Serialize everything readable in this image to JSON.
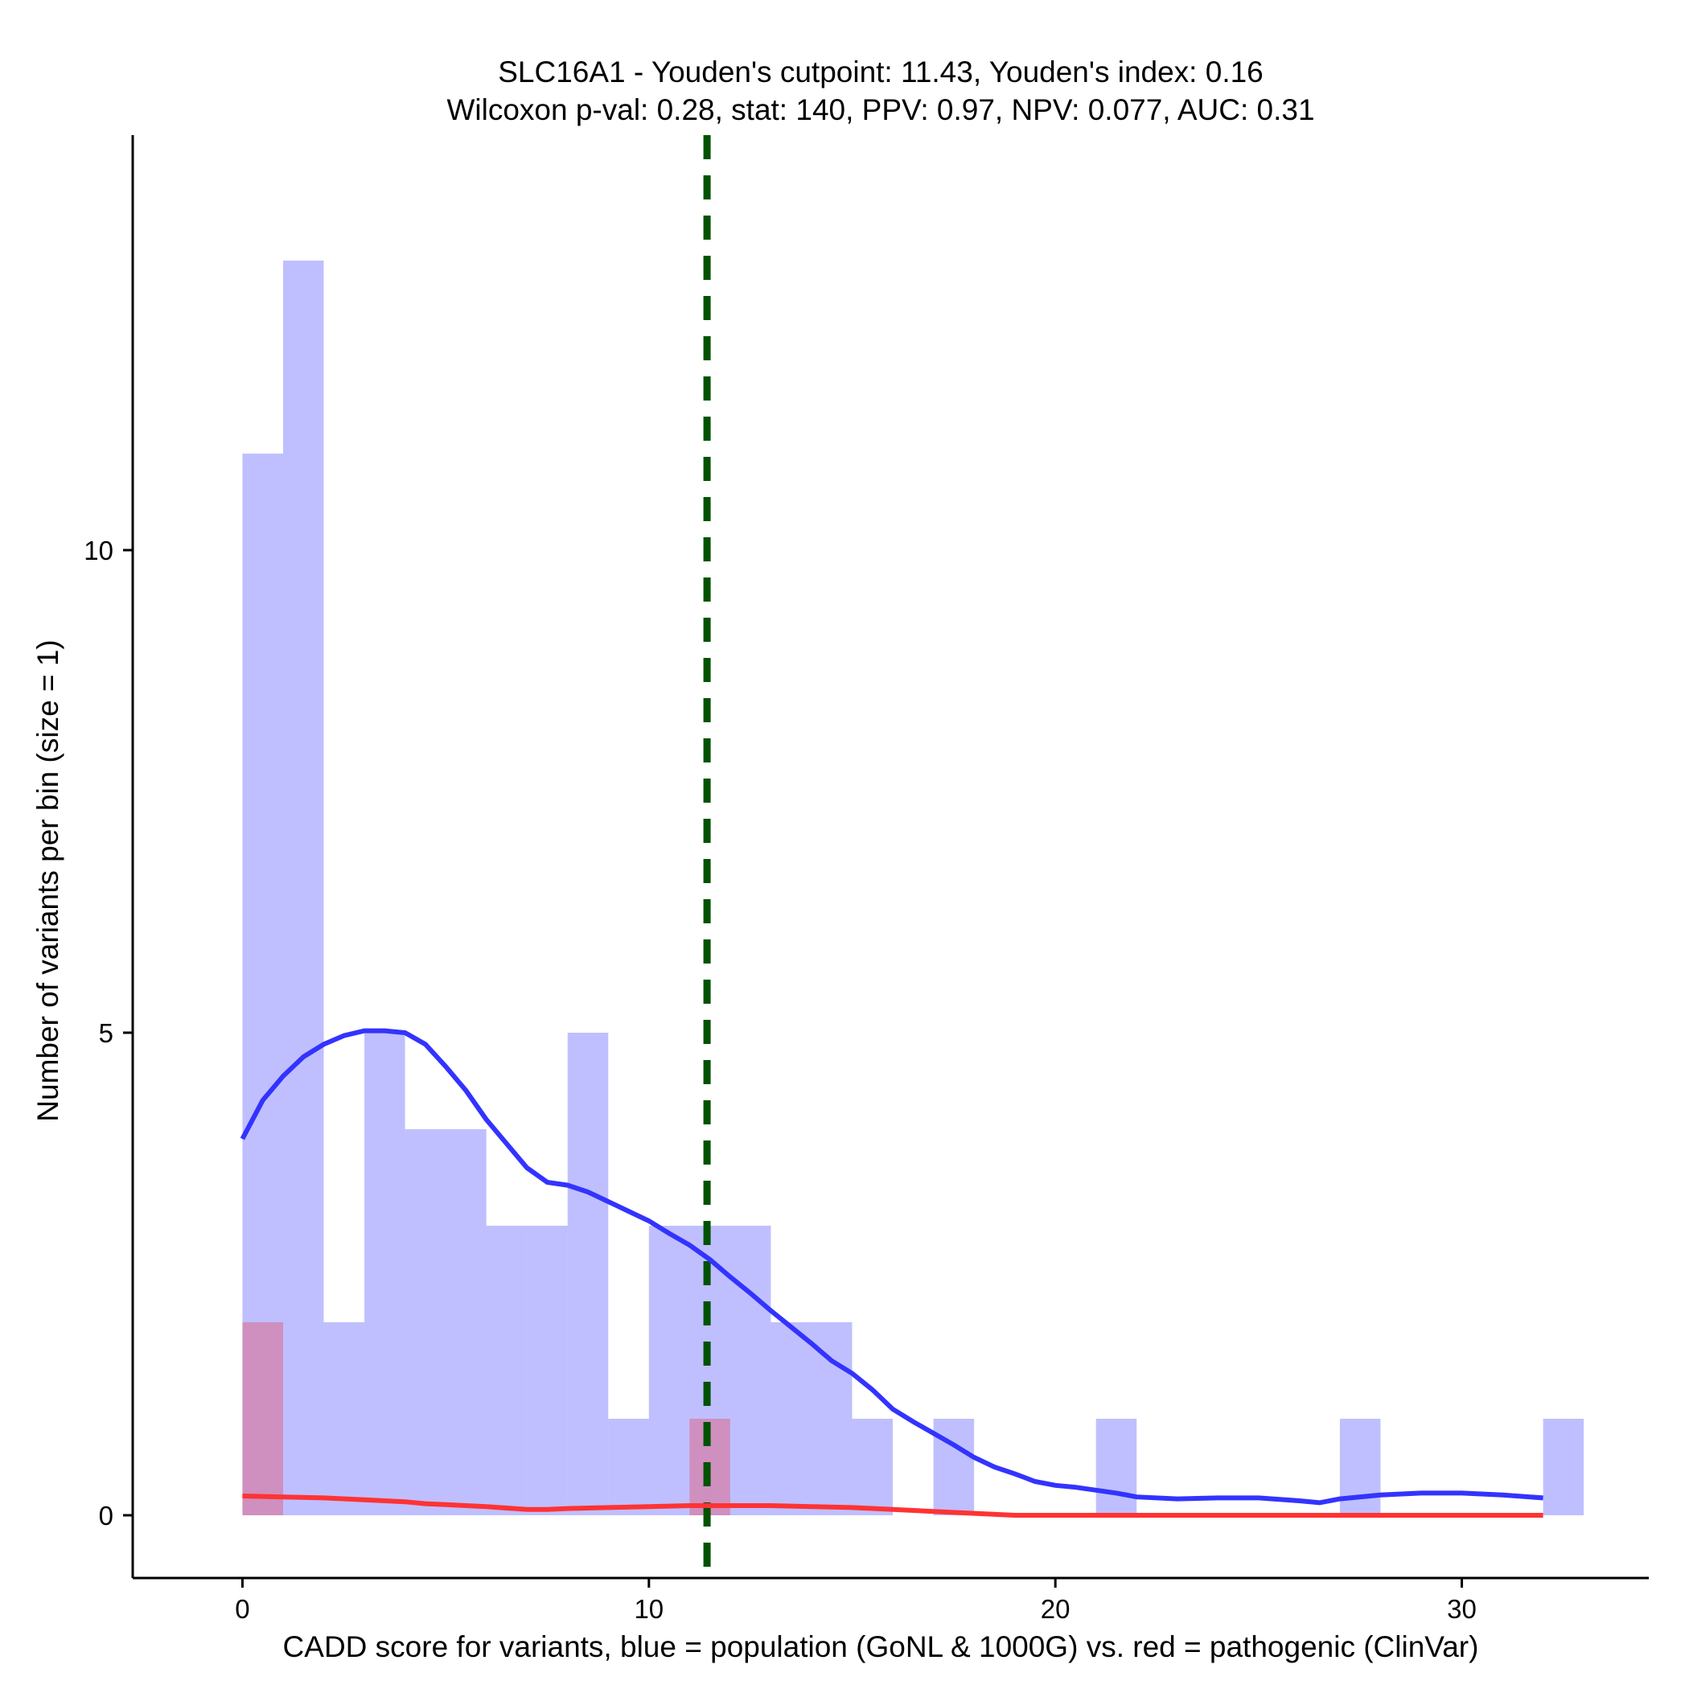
{
  "chart_data": {
    "type": "bar",
    "title_line1": "SLC16A1 - Youden's cutpoint: 11.43, Youden's index: 0.16",
    "title_line2": "Wilcoxon p-val: 0.28, stat: 140, PPV: 0.97, NPV: 0.077, AUC: 0.31",
    "xlabel": "CADD score for variants, blue = population (GoNL & 1000G) vs. red = pathogenic (ClinVar)",
    "ylabel": "Number of variants per bin (size = 1)",
    "xlim": [
      -2.7,
      34.6
    ],
    "ylim": [
      -0.65,
      14.3
    ],
    "x_ticks": [
      0,
      10,
      20,
      30
    ],
    "x_tick_labels": [
      "0",
      "10",
      "20",
      "30"
    ],
    "y_ticks": [
      0,
      5,
      10
    ],
    "y_tick_labels": [
      "0",
      "5",
      "10"
    ],
    "bin_size": 1,
    "cutpoint": 11.43,
    "series": [
      {
        "name": "population (GoNL & 1000G)",
        "color": "#0000ff",
        "opacity": 0.25,
        "bins": [
          {
            "start": 0,
            "count": 11
          },
          {
            "start": 1,
            "count": 13
          },
          {
            "start": 2,
            "count": 2
          },
          {
            "start": 3,
            "count": 5
          },
          {
            "start": 4,
            "count": 4
          },
          {
            "start": 5,
            "count": 4
          },
          {
            "start": 6,
            "count": 3
          },
          {
            "start": 7,
            "count": 3
          },
          {
            "start": 8,
            "count": 5
          },
          {
            "start": 9,
            "count": 1
          },
          {
            "start": 10,
            "count": 3
          },
          {
            "start": 11,
            "count": 3
          },
          {
            "start": 12,
            "count": 3
          },
          {
            "start": 13,
            "count": 2
          },
          {
            "start": 14,
            "count": 2
          },
          {
            "start": 15,
            "count": 1
          },
          {
            "start": 17,
            "count": 1
          },
          {
            "start": 21,
            "count": 1
          },
          {
            "start": 27,
            "count": 1
          },
          {
            "start": 32,
            "count": 1
          }
        ]
      },
      {
        "name": "pathogenic (ClinVar)",
        "color": "#ff0000",
        "opacity": 0.25,
        "bins": [
          {
            "start": 0,
            "count": 2
          },
          {
            "start": 11,
            "count": 1
          }
        ]
      }
    ],
    "density_lines": [
      {
        "name": "population density",
        "color": "#3333ff",
        "points": [
          [
            0,
            3.9
          ],
          [
            0.5,
            4.3
          ],
          [
            1,
            4.55
          ],
          [
            1.5,
            4.75
          ],
          [
            2,
            4.88
          ],
          [
            2.5,
            4.97
          ],
          [
            3,
            5.02
          ],
          [
            3.5,
            5.02
          ],
          [
            4,
            5.0
          ],
          [
            4.5,
            4.88
          ],
          [
            5,
            4.65
          ],
          [
            5.5,
            4.4
          ],
          [
            6,
            4.1
          ],
          [
            6.5,
            3.85
          ],
          [
            7,
            3.6
          ],
          [
            7.5,
            3.45
          ],
          [
            8,
            3.42
          ],
          [
            8.5,
            3.35
          ],
          [
            9,
            3.25
          ],
          [
            9.5,
            3.15
          ],
          [
            10,
            3.05
          ],
          [
            10.5,
            2.92
          ],
          [
            11,
            2.8
          ],
          [
            11.5,
            2.65
          ],
          [
            12,
            2.47
          ],
          [
            12.5,
            2.3
          ],
          [
            13,
            2.12
          ],
          [
            13.5,
            1.95
          ],
          [
            14,
            1.78
          ],
          [
            14.5,
            1.6
          ],
          [
            15,
            1.47
          ],
          [
            15.5,
            1.3
          ],
          [
            16,
            1.1
          ],
          [
            16.5,
            0.97
          ],
          [
            17,
            0.85
          ],
          [
            17.5,
            0.73
          ],
          [
            18,
            0.6
          ],
          [
            18.5,
            0.5
          ],
          [
            19,
            0.43
          ],
          [
            19.5,
            0.35
          ],
          [
            20,
            0.31
          ],
          [
            20.5,
            0.29
          ],
          [
            21,
            0.26
          ],
          [
            21.5,
            0.23
          ],
          [
            22,
            0.19
          ],
          [
            23,
            0.17
          ],
          [
            24,
            0.18
          ],
          [
            25,
            0.18
          ],
          [
            26,
            0.15
          ],
          [
            26.5,
            0.13
          ],
          [
            27,
            0.17
          ],
          [
            28,
            0.21
          ],
          [
            29,
            0.23
          ],
          [
            30,
            0.23
          ],
          [
            31,
            0.21
          ],
          [
            32,
            0.18
          ]
        ]
      },
      {
        "name": "pathogenic density",
        "color": "#ff3333",
        "points": [
          [
            0,
            0.2
          ],
          [
            1,
            0.19
          ],
          [
            2,
            0.18
          ],
          [
            3,
            0.16
          ],
          [
            4,
            0.14
          ],
          [
            4.5,
            0.12
          ],
          [
            5,
            0.11
          ],
          [
            6,
            0.09
          ],
          [
            7,
            0.06
          ],
          [
            7.5,
            0.06
          ],
          [
            8,
            0.07
          ],
          [
            9,
            0.08
          ],
          [
            10,
            0.09
          ],
          [
            11,
            0.1
          ],
          [
            12,
            0.1
          ],
          [
            13,
            0.1
          ],
          [
            14,
            0.09
          ],
          [
            15,
            0.08
          ],
          [
            16,
            0.06
          ],
          [
            17,
            0.04
          ],
          [
            18,
            0.02
          ],
          [
            19,
            0.0
          ],
          [
            20,
            0.0
          ],
          [
            22,
            0.0
          ],
          [
            25,
            0.0
          ],
          [
            28,
            0.0
          ],
          [
            30,
            0.0
          ],
          [
            32,
            0.0
          ]
        ]
      }
    ],
    "cutpoint_line_color": "#005200"
  }
}
